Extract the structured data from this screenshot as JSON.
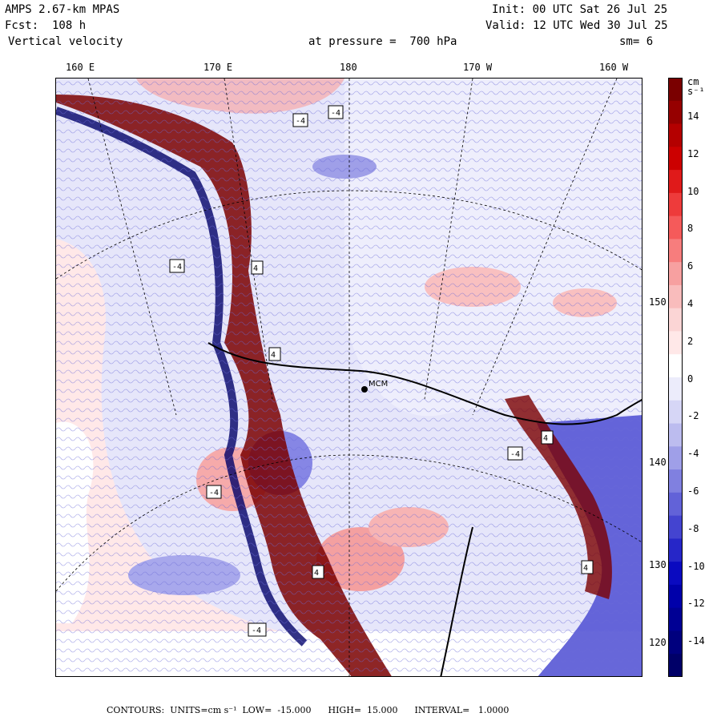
{
  "header": {
    "model": "AMPS 2.67-km MPAS",
    "forecast": "Fcst:  108 h",
    "field": "Vertical velocity",
    "init": "Init: 00 UTC Sat 26 Jul 25",
    "valid": "Valid: 12 UTC Wed 30 Jul 25",
    "level": "at pressure =  700 hPa",
    "smoothing": "sm= 6"
  },
  "map": {
    "longitude_labels": [
      "160 E",
      "170 E",
      "180",
      "170 W",
      "160 W"
    ],
    "latitude_labels": [
      "150 W",
      "140 W",
      "130 W",
      "120 W"
    ],
    "station_label": "MCM",
    "contour_labels": [
      "-4",
      "-4",
      "-4",
      "-4",
      "-4",
      "-4",
      "4",
      "4",
      "4",
      "4",
      "4"
    ]
  },
  "colorbar": {
    "units": "cm s⁻¹",
    "tick_labels": [
      "14",
      "12",
      "10",
      "8",
      "6",
      "4",
      "2",
      "0",
      "-2",
      "-4",
      "-6",
      "-8",
      "-10",
      "-12",
      "-14"
    ],
    "colors": [
      "#7a0000",
      "#960000",
      "#b40000",
      "#cc0000",
      "#e01a1a",
      "#ee3b3b",
      "#f55a5a",
      "#f77d7d",
      "#f7a0a0",
      "#f9bcbc",
      "#fbd5d5",
      "#ffe8e8",
      "#ffffff",
      "#ececfb",
      "#d6d6f6",
      "#bcbcef",
      "#9f9fe8",
      "#8080e0",
      "#6262d8",
      "#4444d0",
      "#2626c8",
      "#0a0ac0",
      "#0000aa",
      "#000094",
      "#00007e",
      "#000068"
    ]
  },
  "footer": "CONTOURS:  UNITS=cm s⁻¹  LOW=  -15.000      HIGH=  15.000      INTERVAL=   1.0000"
}
